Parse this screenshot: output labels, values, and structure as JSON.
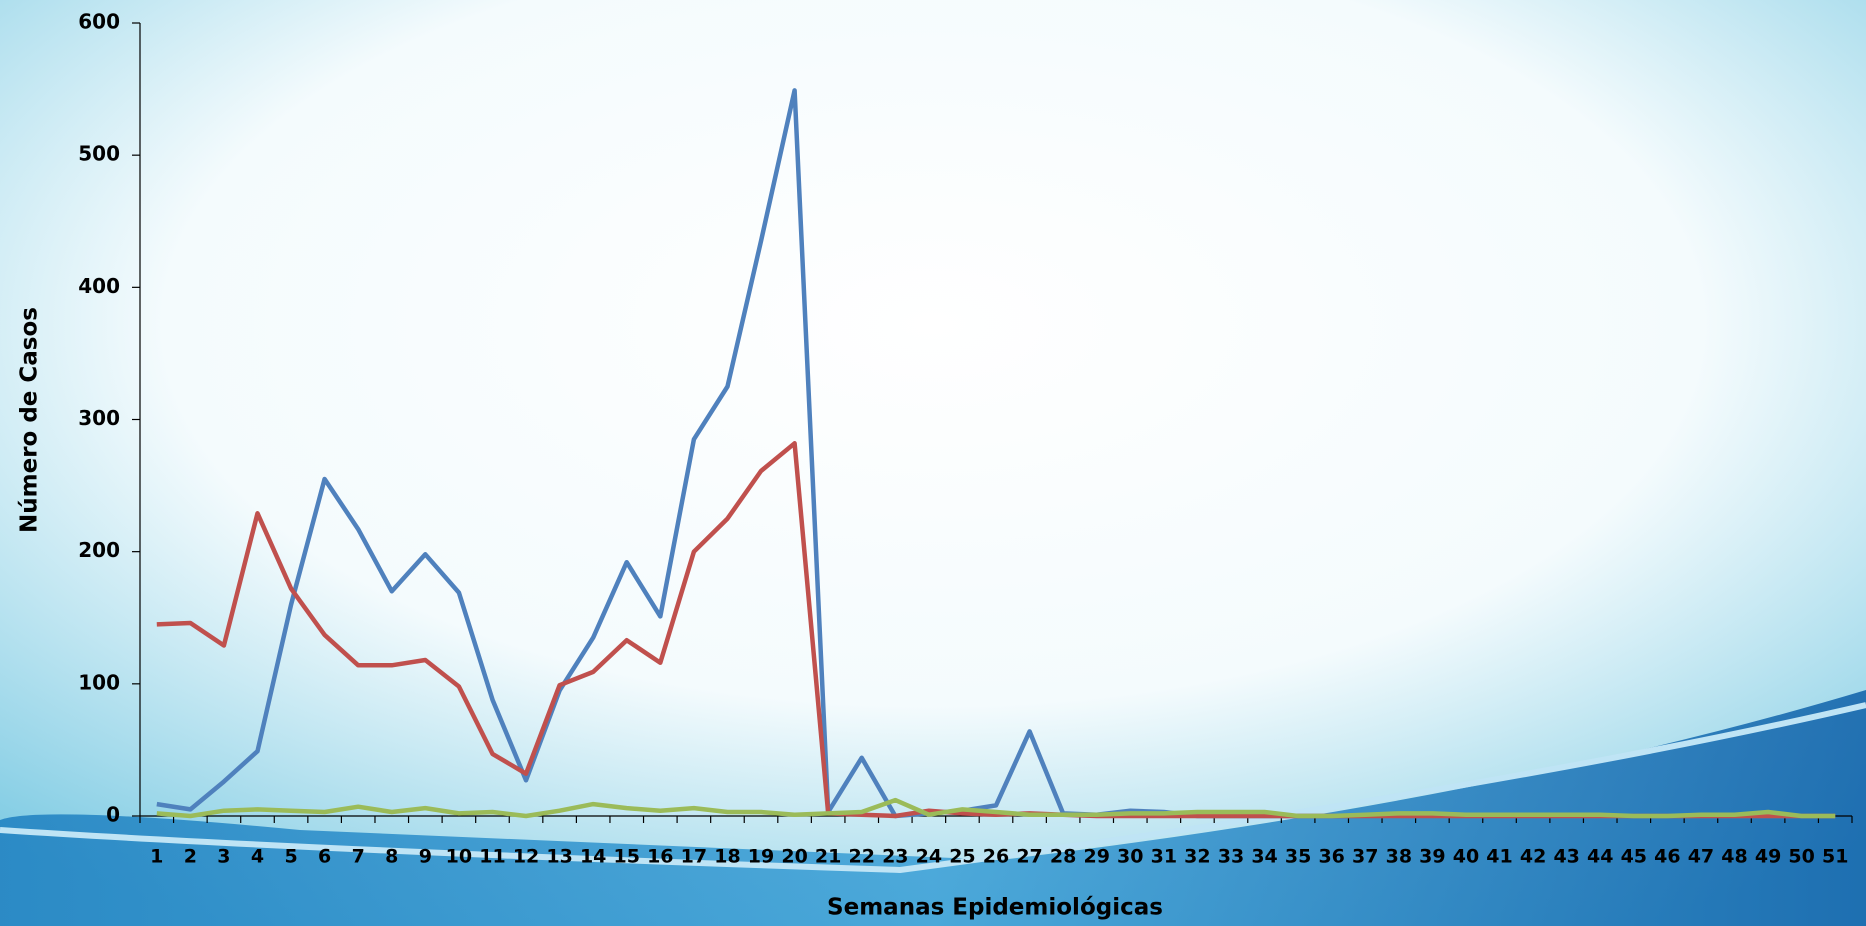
{
  "chart_data": {
    "type": "line",
    "xlabel": "Semanas Epidemiológicas",
    "ylabel": "Número de Casos",
    "categories": [
      "1",
      "2",
      "3",
      "4",
      "5",
      "6",
      "7",
      "8",
      "9",
      "10",
      "11",
      "12",
      "13",
      "14",
      "15",
      "16",
      "17",
      "18",
      "19",
      "20",
      "21",
      "22",
      "23",
      "24",
      "25",
      "26",
      "27",
      "28",
      "29",
      "30",
      "31",
      "32",
      "33",
      "34",
      "35",
      "36",
      "37",
      "38",
      "39",
      "40",
      "41",
      "42",
      "43",
      "44",
      "45",
      "46",
      "47",
      "48",
      "49",
      "50",
      "51"
    ],
    "series": [
      {
        "color": "#4f81bd",
        "values": [
          9,
          5,
          26,
          49,
          160,
          255,
          217,
          170,
          198,
          169,
          88,
          27,
          95,
          135,
          192,
          151,
          285,
          325,
          435,
          549,
          3,
          44,
          0,
          2,
          4,
          8,
          64,
          2,
          1,
          4,
          3,
          0,
          0,
          0,
          0,
          0,
          0,
          0,
          0,
          0,
          0,
          0,
          0,
          0,
          0,
          0,
          0,
          0,
          0,
          0,
          0
        ]
      },
      {
        "color": "#c0504d",
        "values": [
          145,
          146,
          129,
          229,
          172,
          137,
          114,
          114,
          118,
          98,
          47,
          32,
          99,
          109,
          133,
          116,
          200,
          225,
          261,
          282,
          2,
          1,
          0,
          4,
          2,
          1,
          2,
          1,
          0,
          0,
          0,
          0,
          0,
          0,
          0,
          0,
          0,
          0,
          0,
          0,
          0,
          0,
          0,
          0,
          0,
          0,
          0,
          0,
          0,
          0,
          0
        ]
      },
      {
        "color": "#9bbb59",
        "values": [
          2,
          0,
          4,
          5,
          4,
          3,
          7,
          3,
          6,
          2,
          3,
          0,
          4,
          9,
          6,
          4,
          6,
          3,
          3,
          1,
          2,
          3,
          12,
          1,
          5,
          3,
          1,
          1,
          1,
          2,
          2,
          3,
          3,
          3,
          0,
          0,
          1,
          2,
          2,
          1,
          1,
          1,
          1,
          1,
          0,
          0,
          1,
          1,
          3,
          0,
          0
        ]
      }
    ],
    "ylim": [
      0,
      600
    ],
    "yticks": [
      0,
      100,
      200,
      300,
      400,
      500,
      600
    ]
  }
}
